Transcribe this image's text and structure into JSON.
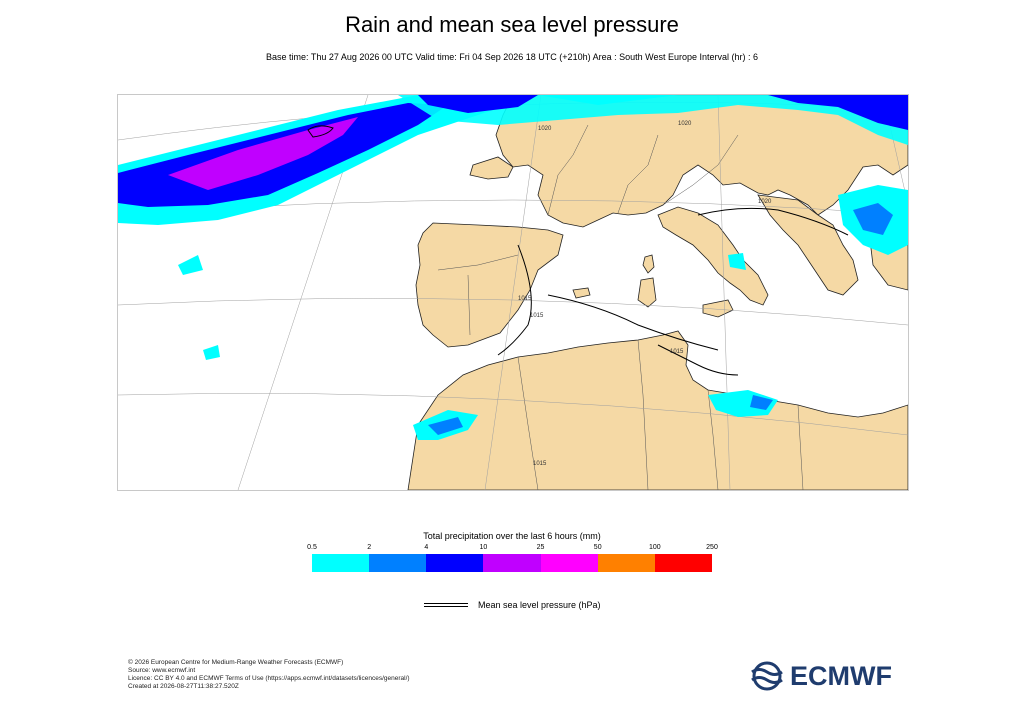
{
  "title": "Rain and mean sea level pressure",
  "subtitle": "Base time: Thu 27 Aug 2026 00 UTC Valid time: Fri 04 Sep 2026 18 UTC (+210h) Area : South West Europe Interval (hr) : 6",
  "map": {
    "isobar_labels": [
      "1020",
      "1020",
      "1020",
      "1015",
      "1015",
      "1015",
      "1015"
    ]
  },
  "legend": {
    "title": "Total precipitation over the last 6 hours (mm)",
    "ticks": [
      "0.5",
      "2",
      "4",
      "10",
      "25",
      "50",
      "100",
      "250"
    ],
    "colors": [
      "#00ffff",
      "#0080ff",
      "#0000ff",
      "#c000ff",
      "#ff00ff",
      "#ff8000",
      "#ff0000"
    ],
    "mslp_label": "Mean sea level pressure (hPa)"
  },
  "colors": {
    "land": "#f5d9a5",
    "sea": "#ffffff",
    "border": "#000000",
    "graticule": "#a0a0a0"
  },
  "footer": {
    "line1": "© 2026 European Centre for Medium-Range Weather Forecasts (ECMWF)",
    "line2": "Source: www.ecmwf.int",
    "line3": "Licence: CC BY 4.0 and ECMWF Terms of Use (https://apps.ecmwf.int/datasets/licences/general/)",
    "line4": "Created at 2026-08-27T11:38:27.520Z"
  },
  "logo": {
    "text": "ECMWF",
    "color": "#1f3c6e"
  }
}
